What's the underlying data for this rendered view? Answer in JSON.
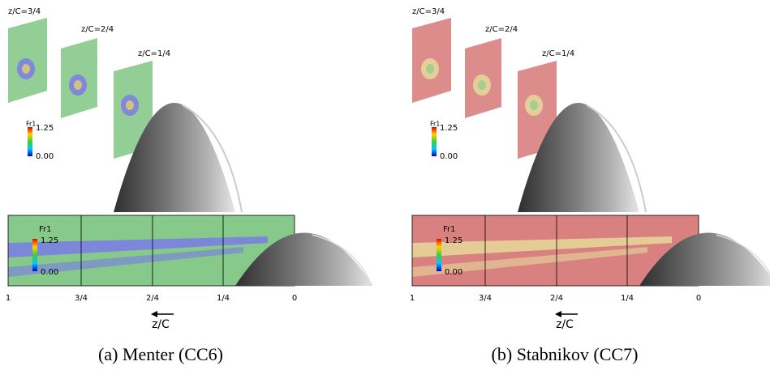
{
  "panels": [
    {
      "slices": [
        {
          "label": "z/C=3/4"
        },
        {
          "label": "z/C=2/4"
        },
        {
          "label": "z/C=1/4"
        }
      ],
      "top_colorbar": {
        "title": "Fr1",
        "max": "1.25",
        "min": "0.00"
      },
      "bottom_colorbar": {
        "title": "Fr1",
        "max": "1.25",
        "min": "0.00"
      },
      "axis": {
        "ticks": [
          "1",
          "3/4",
          "2/4",
          "1/4",
          "0"
        ],
        "label": "z/C"
      },
      "caption": "(a) Menter (CC6)"
    },
    {
      "slices": [
        {
          "label": "z/C=3/4"
        },
        {
          "label": "z/C=2/4"
        },
        {
          "label": "z/C=1/4"
        }
      ],
      "top_colorbar": {
        "title": "Fr1",
        "max": "1.25",
        "min": "0.00"
      },
      "bottom_colorbar": {
        "title": "Fr1",
        "max": "1.25",
        "min": "0.00"
      },
      "axis": {
        "ticks": [
          "1",
          "3/4",
          "2/4",
          "1/4",
          "0"
        ],
        "label": "z/C"
      },
      "caption": "(b) Stabnikov (CC7)"
    }
  ]
}
